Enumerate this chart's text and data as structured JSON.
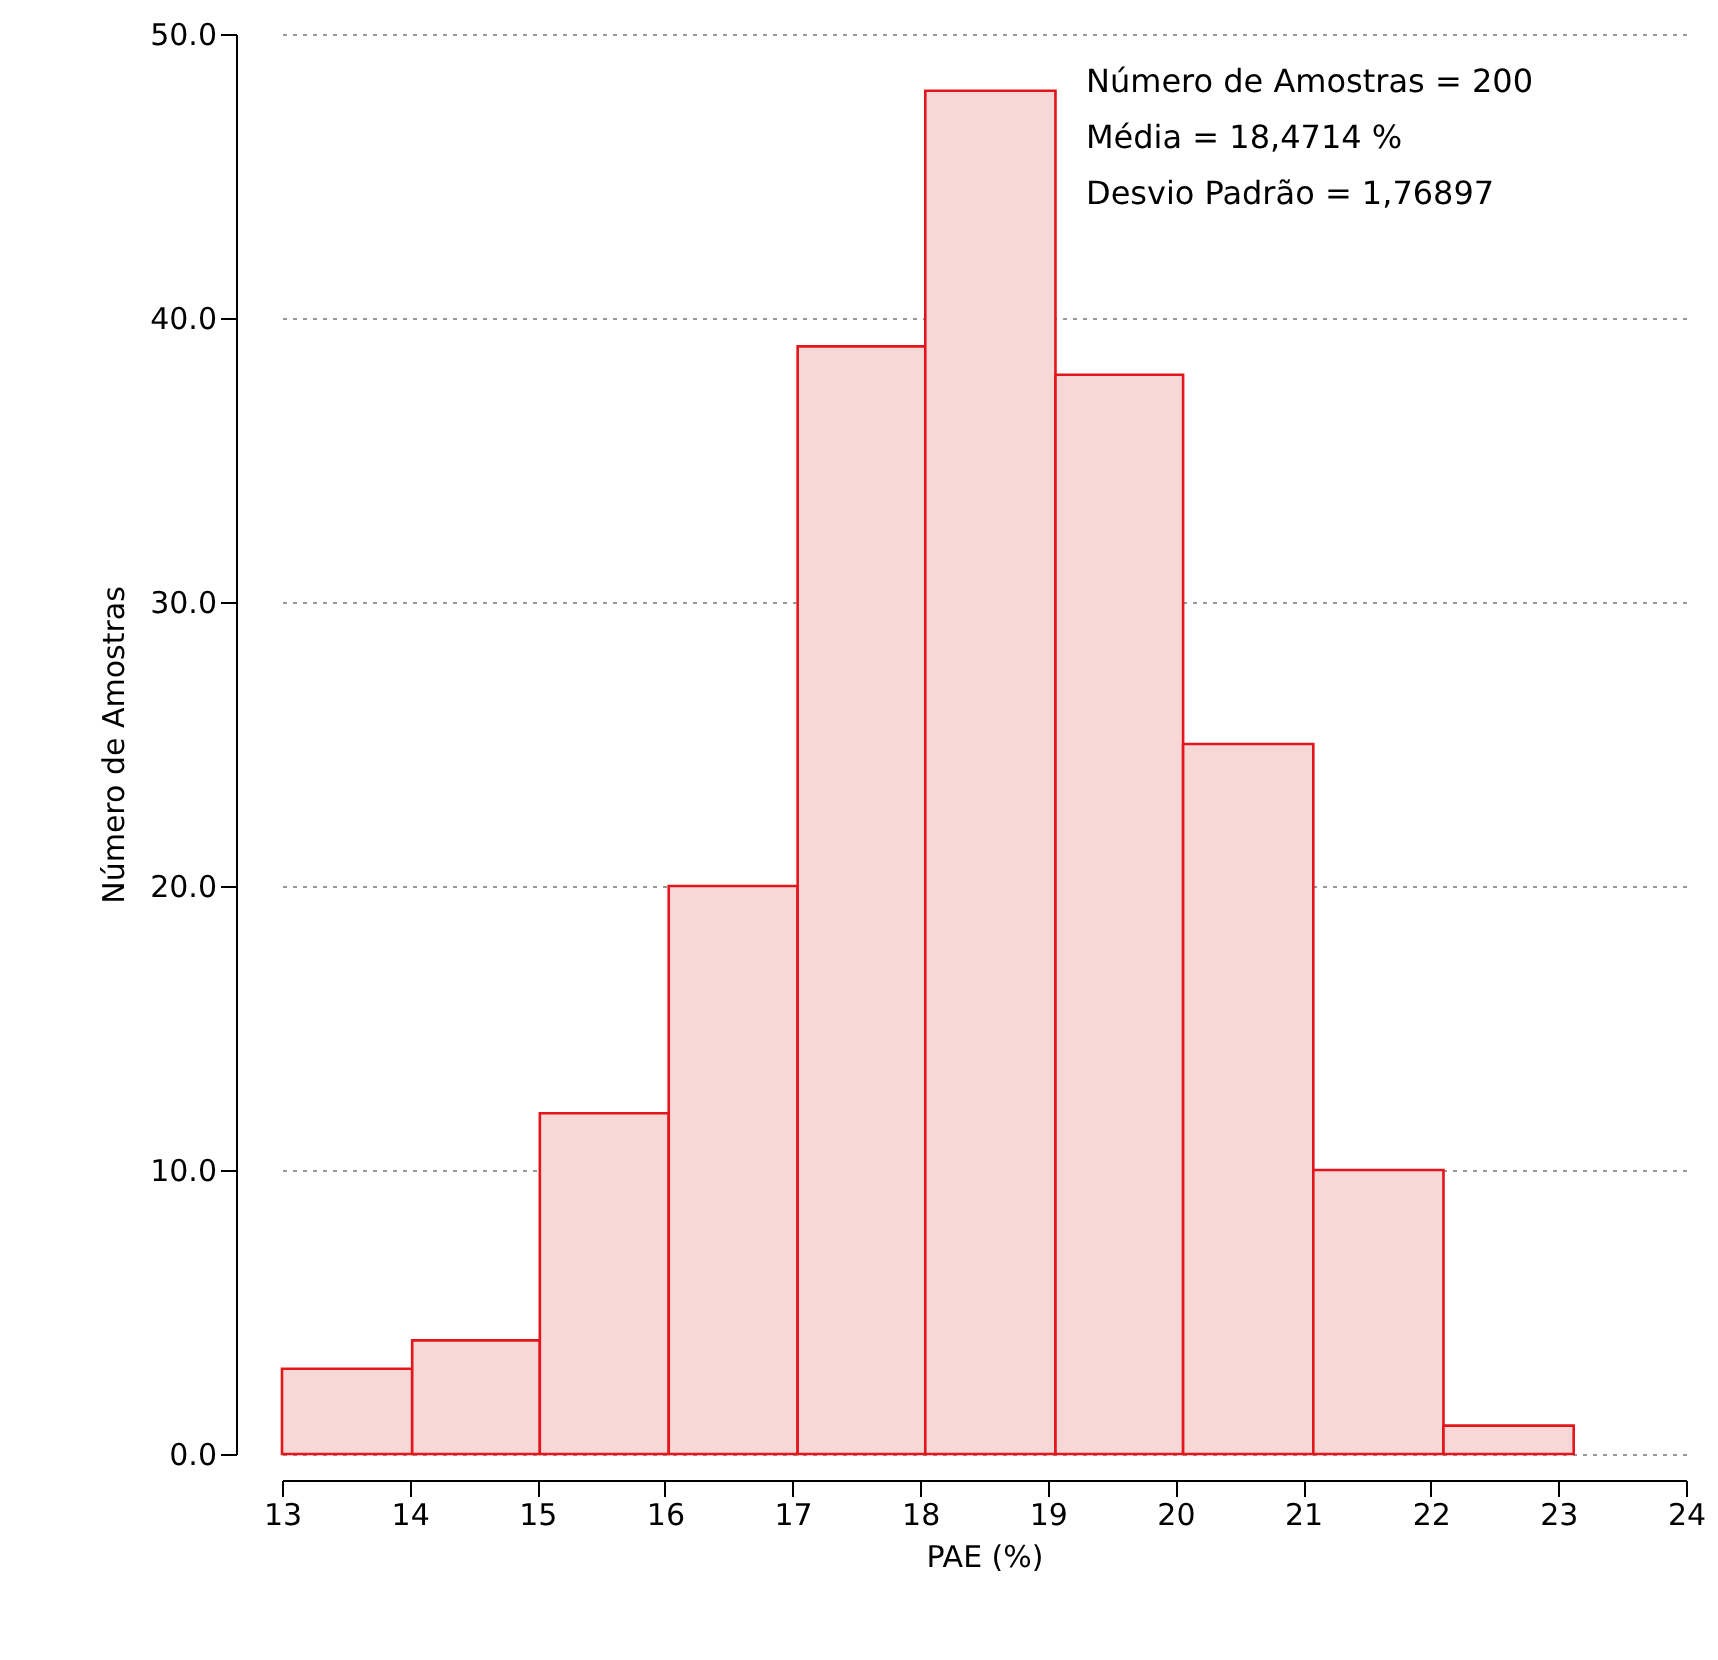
{
  "chart_data": {
    "type": "histogram",
    "xlabel": "PAE (%)",
    "ylabel": "Número de Amostras",
    "bins": [
      13.0,
      14.02,
      15.02,
      16.03,
      17.04,
      18.04,
      19.06,
      20.06,
      21.08,
      22.1,
      23.12
    ],
    "values": [
      3,
      4,
      12,
      20,
      39,
      48,
      38,
      25,
      10,
      1
    ],
    "color": "#f8d7d7",
    "xlim": [
      13,
      24
    ],
    "xticks": [
      13,
      14,
      15,
      16,
      17,
      18,
      19,
      20,
      21,
      22,
      23,
      24
    ],
    "ylim": [
      0,
      50
    ],
    "yticks": [
      {
        "value": 0,
        "label": "0.0"
      },
      {
        "value": 10,
        "label": "10.0"
      },
      {
        "value": 20,
        "label": "20.0"
      },
      {
        "value": 30,
        "label": "30.0"
      },
      {
        "value": 40,
        "label": "40.0"
      },
      {
        "value": 50,
        "label": "50.0"
      }
    ],
    "grid": "y",
    "annotations": [
      "Número de Amostras = 200",
      "Média = 18,4714 %",
      "Desvio Padrão = 1,76897"
    ]
  }
}
